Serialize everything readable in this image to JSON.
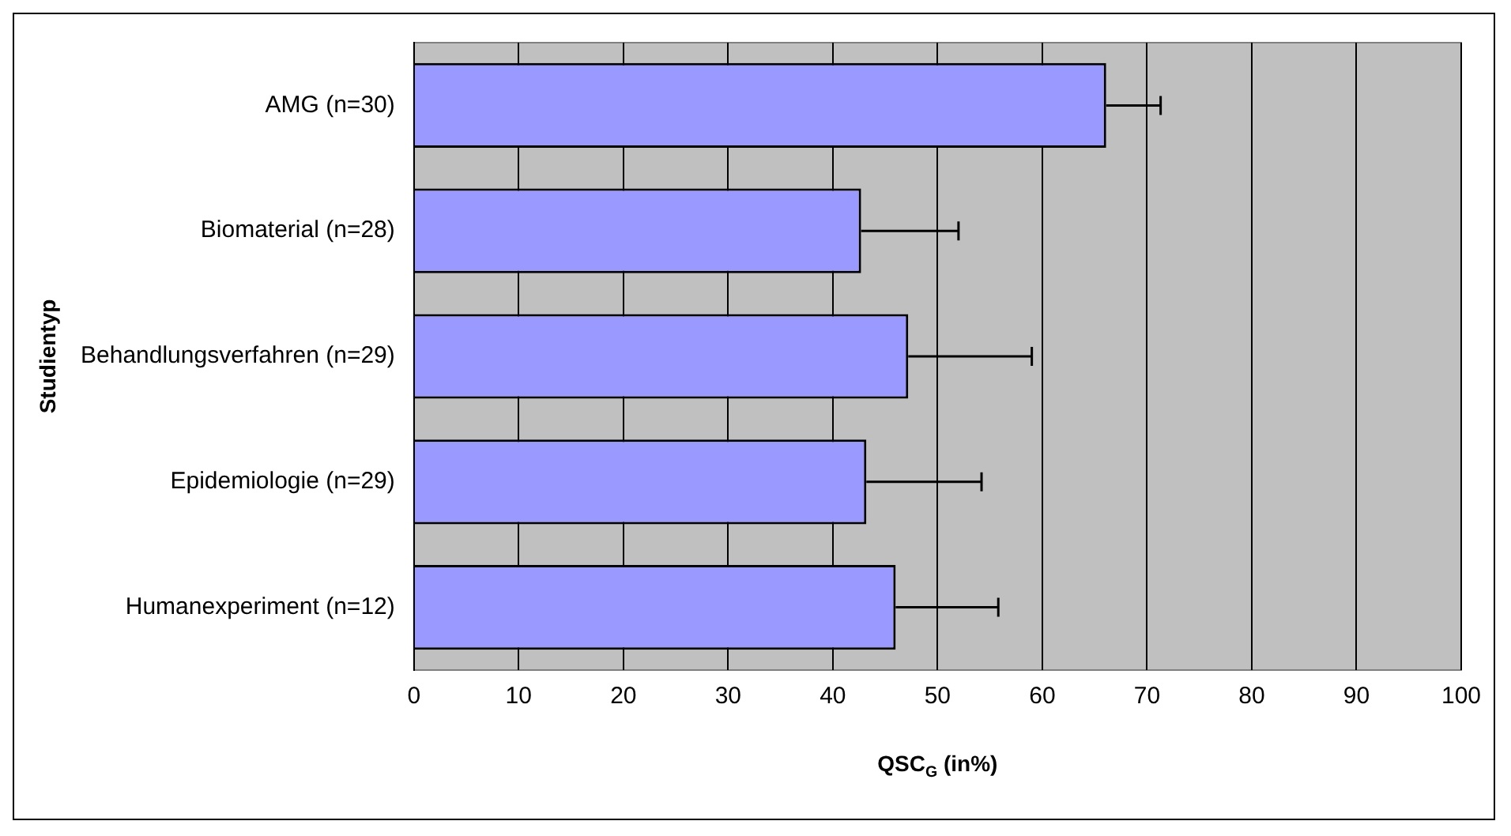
{
  "chart_data": {
    "type": "bar",
    "orientation": "horizontal",
    "ylabel": "Studientyp",
    "xlabel": "QSC$_{G}$ (in%)",
    "categories": [
      "AMG (n=30)",
      "Biomaterial (n=28)",
      "Behandlungsverfahren (n=29)",
      "Epidemiologie (n=29)",
      "Humanexperiment (n=12)"
    ],
    "values": [
      66.1,
      42.7,
      47.2,
      43.2,
      46.0
    ],
    "errors": [
      [
        66.1,
        71.3
      ],
      [
        42.7,
        52.0
      ],
      [
        47.2,
        59.0
      ],
      [
        43.2,
        54.2
      ],
      [
        46.0,
        55.8
      ]
    ],
    "color": "#9999ff",
    "xlim": [
      0,
      100
    ],
    "xticks": [
      0,
      10,
      20,
      30,
      40,
      50,
      60,
      70,
      80,
      90,
      100
    ],
    "grid": "x",
    "legend": false
  }
}
